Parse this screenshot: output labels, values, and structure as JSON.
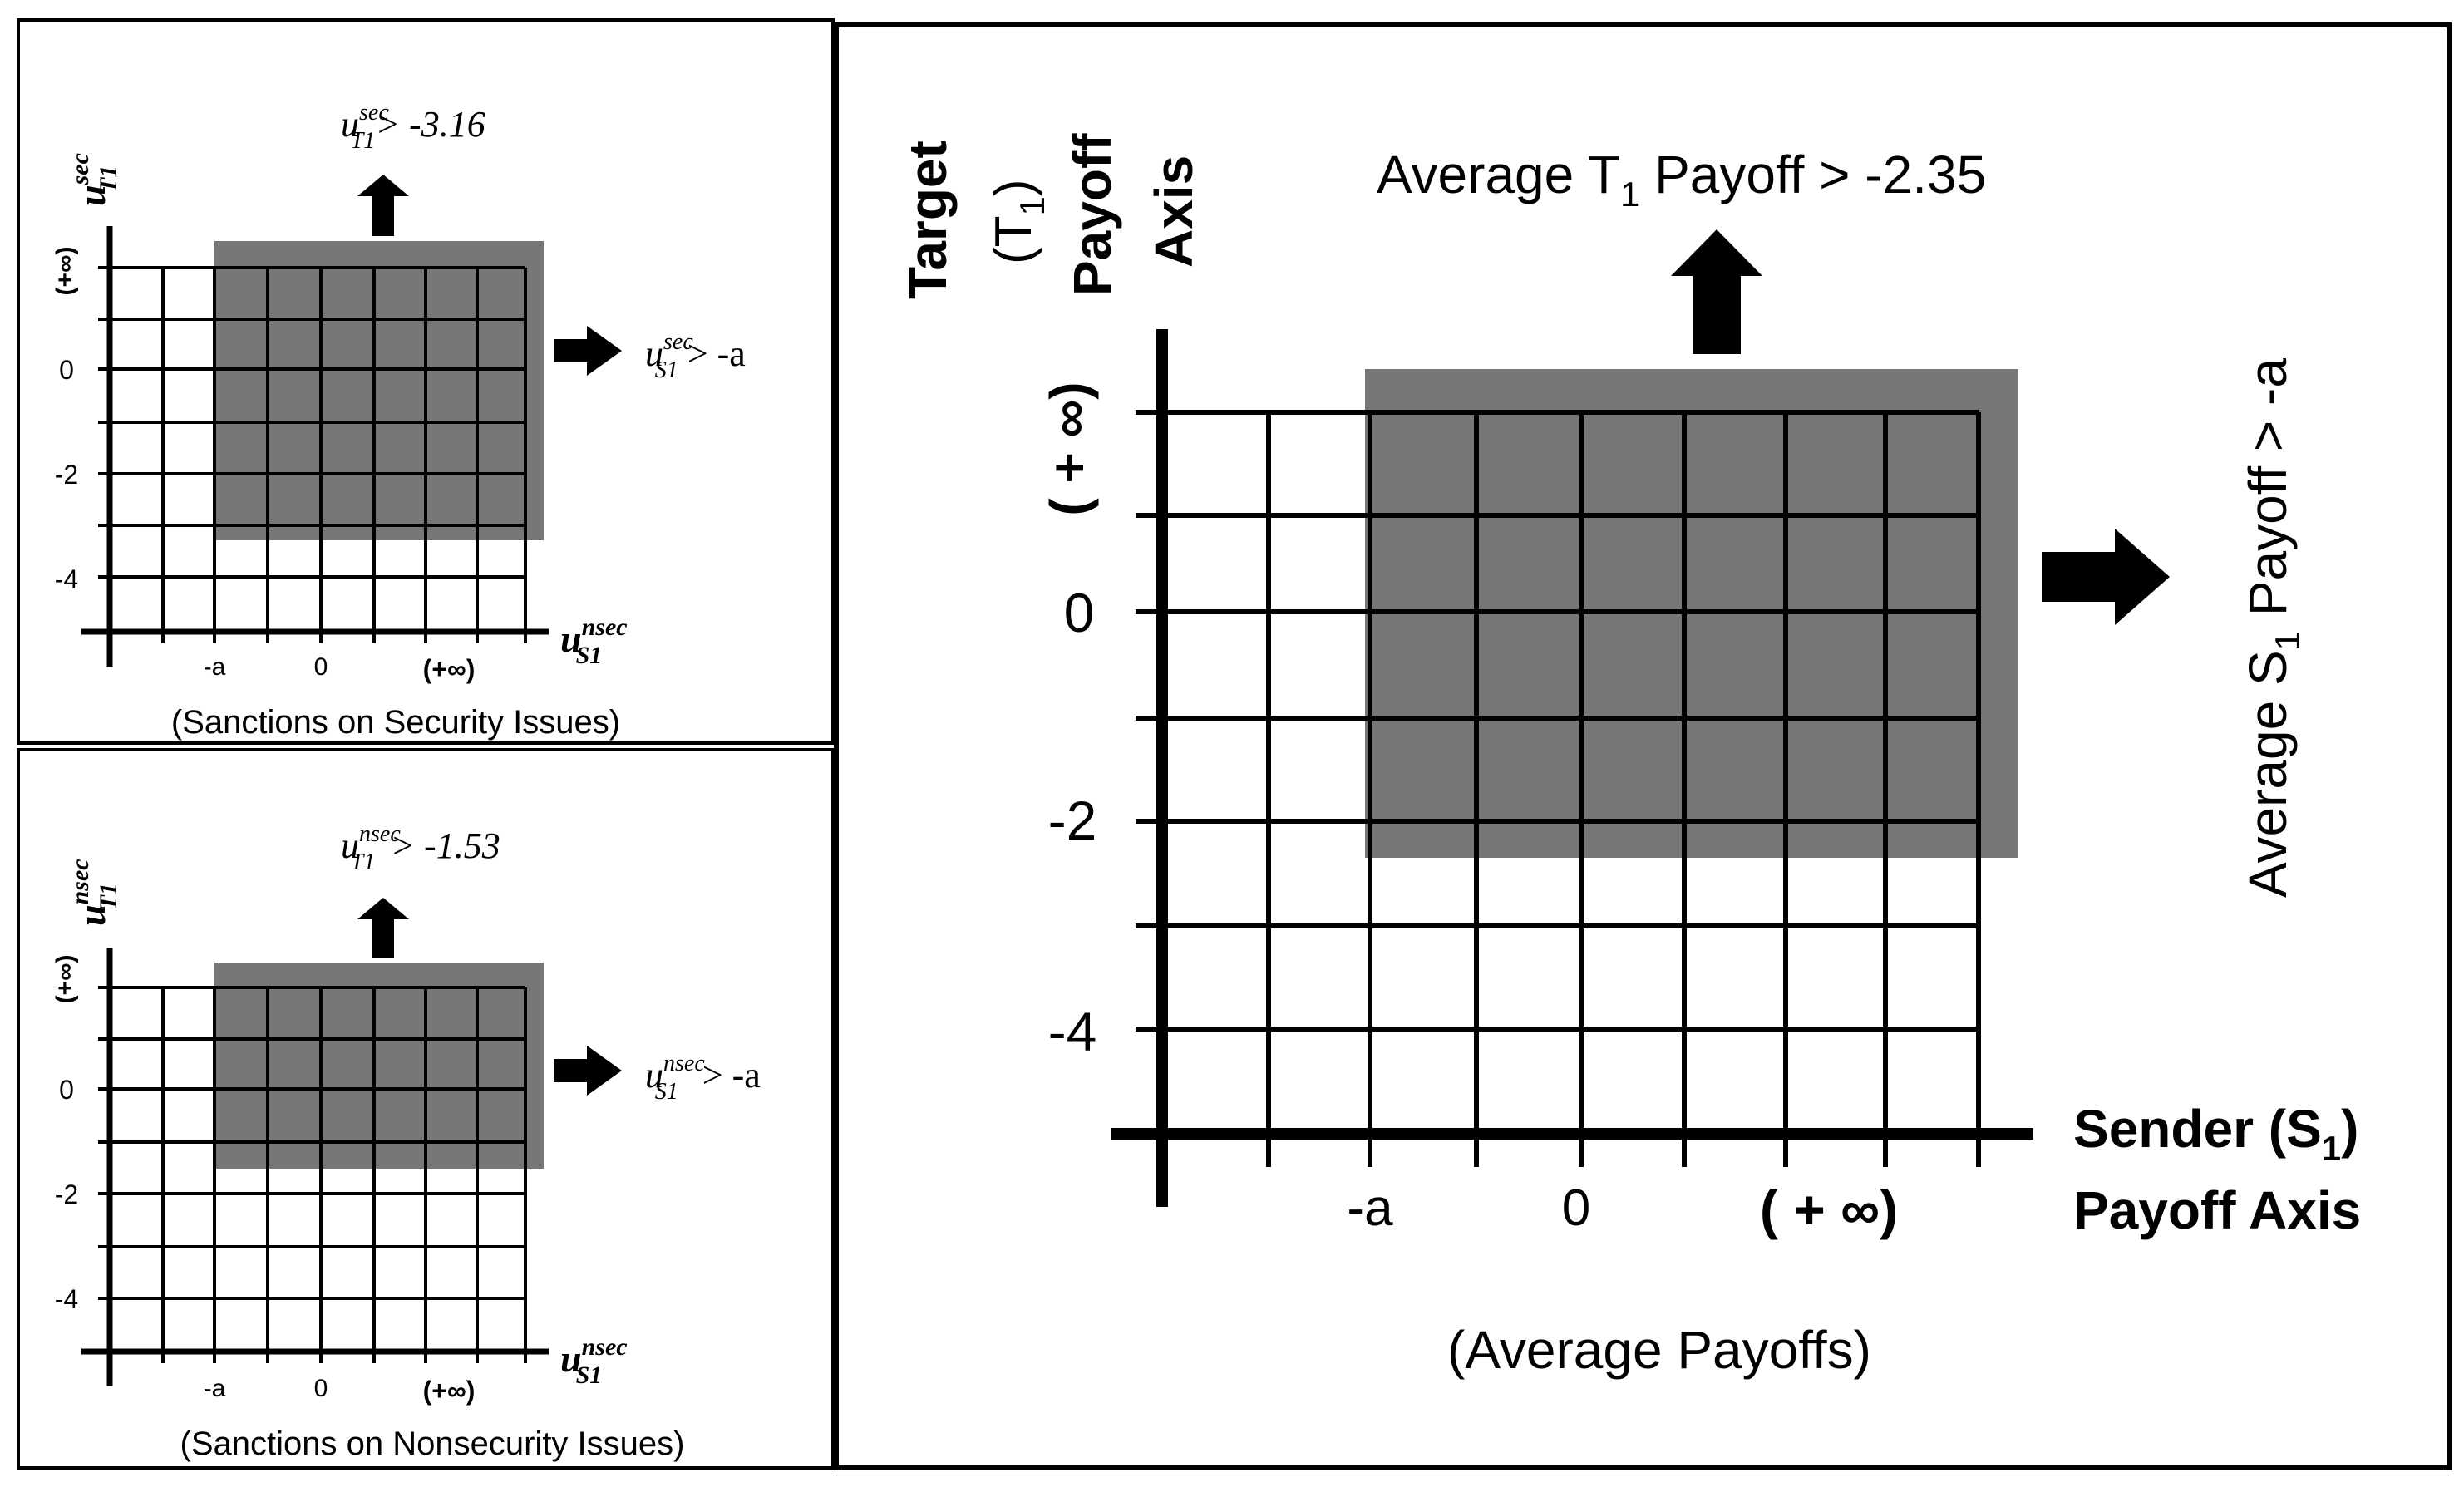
{
  "panels": {
    "security": {
      "caption": "(Sanctions on Security Issues)",
      "y_axis": {
        "base": "u",
        "sup": "sec",
        "sub": "T1"
      },
      "x_axis": {
        "base": "u",
        "sup": "nsec",
        "sub": "S1"
      },
      "y_ticks": [
        "(+∞)",
        "0",
        "-2",
        "-4"
      ],
      "x_ticks": [
        "-a",
        "0",
        "(+∞)"
      ],
      "top_condition": {
        "base": "u",
        "sup": "sec",
        "sub": "T1",
        "rest": "> -3.16"
      },
      "right_condition": {
        "base": "u",
        "sup": "sec",
        "sub": "S1",
        "rest": " > -a"
      }
    },
    "nonsecurity": {
      "caption": "(Sanctions on Nonsecurity Issues)",
      "y_axis": {
        "base": "u",
        "sup": "nsec",
        "sub": "T1"
      },
      "x_axis": {
        "base": "u",
        "sup": "nsec",
        "sub": "S1"
      },
      "y_ticks": [
        "(+∞)",
        "0",
        "-2",
        "-4"
      ],
      "x_ticks": [
        "-a",
        "0",
        "(+∞)"
      ],
      "top_condition": {
        "base": "u",
        "sup": "nsec",
        "sub": "T1",
        "rest": "> -1.53"
      },
      "right_condition": {
        "base": "u",
        "sup": "nsec",
        "sub": "S1",
        "rest": " > -a"
      }
    },
    "average": {
      "caption": "(Average Payoffs)",
      "y_axis_lines": [
        "Target",
        "(T",
        "1",
        ")",
        "Payoff",
        "Axis"
      ],
      "x_axis_lines": [
        "Sender (S",
        "1",
        ")",
        "Payoff Axis"
      ],
      "y_ticks": [
        "( + ∞)",
        "0",
        "-2",
        "-4"
      ],
      "x_ticks": [
        "-a",
        "0",
        "( + ∞)"
      ],
      "top_condition": {
        "pre": "Average T",
        "sub": "1",
        "post": " Payoff > -2.35"
      },
      "right_condition": {
        "pre": "Average S",
        "sub": "1",
        "post": " Payoff > -a"
      }
    }
  },
  "colors": {
    "shade": "#777777",
    "line": "#000000",
    "background": "#ffffff"
  }
}
